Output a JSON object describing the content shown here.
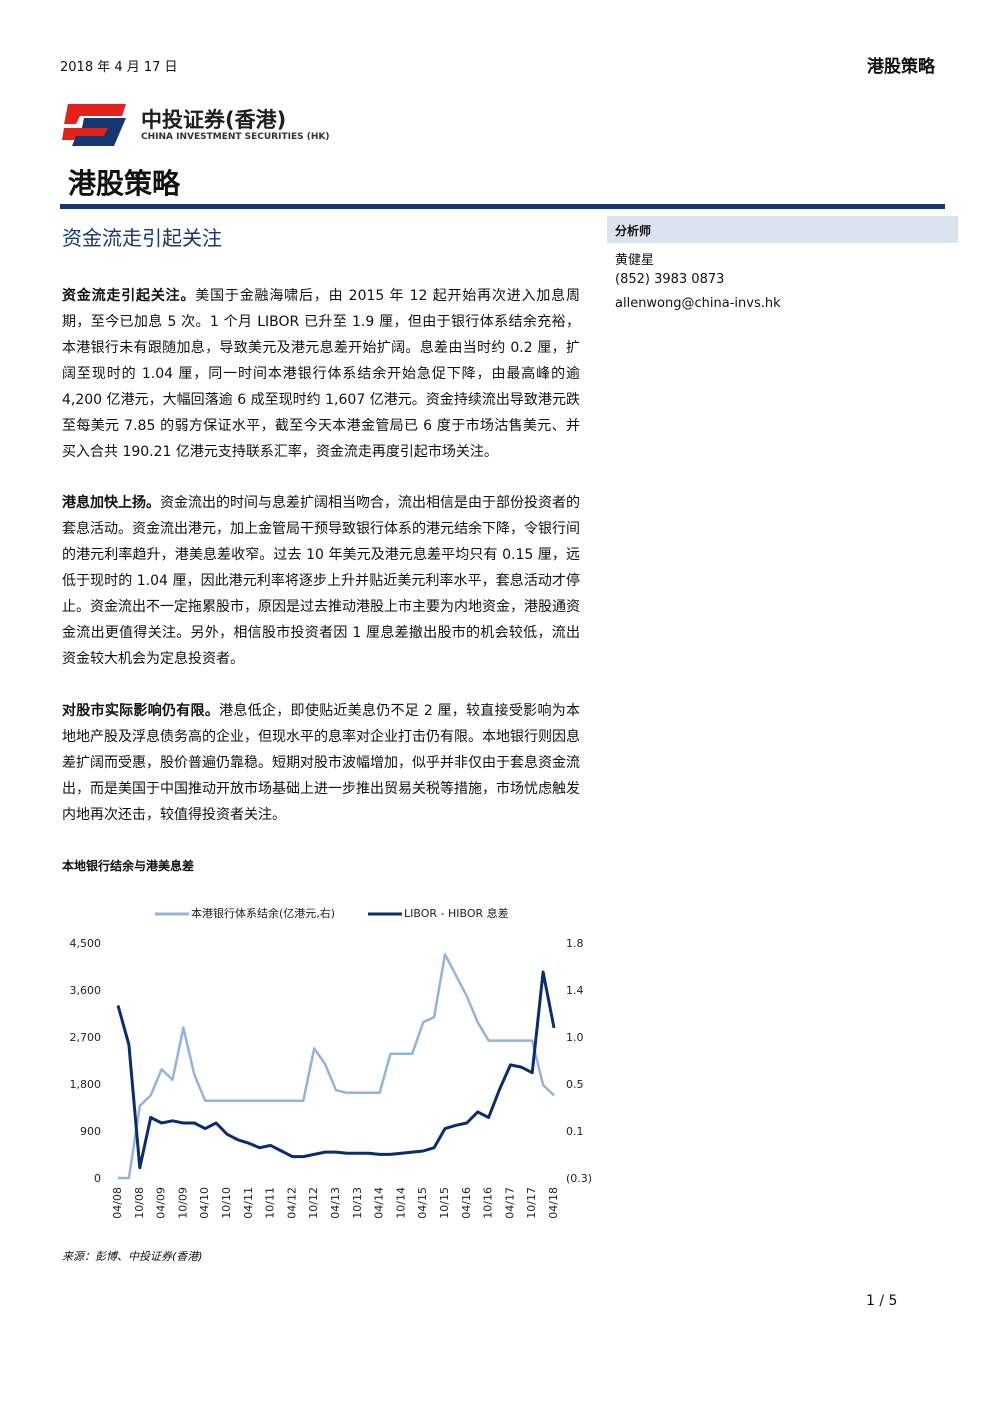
{
  "header": {
    "date": "2018 年 4 月 17 日",
    "report_type": "港股策略"
  },
  "logo": {
    "name_cn": "中投证券(香港)",
    "name_en": "CHINA INVESTMENT SECURITIES (HK)"
  },
  "section_title": "港股策略",
  "article": {
    "title": "资金流走引起关注",
    "paragraphs": [
      {
        "lead": "资金流走引起关注。",
        "text": "美国于金融海啸后，由 2015 年 12 起开始再次进入加息周期，至今已加息 5 次。1 个月 LIBOR 已升至 1.9 厘，但由于银行体系结余充裕，本港银行未有跟随加息，导致美元及港元息差开始扩阔。息差由当时约 0.2 厘，扩阔至现时的 1.04 厘，同一时间本港银行体系结余开始急促下降，由最高峰的逾 4,200 亿港元，大幅回落逾 6 成至现时约 1,607 亿港元。资金持续流出导致港元跌至每美元 7.85 的弱方保证水平，截至今天本港金管局已 6 度于市场沽售美元、并买入合共 190.21 亿港元支持联系汇率，资金流走再度引起市场关注。"
      },
      {
        "lead": "港息加快上扬。",
        "text": "资金流出的时间与息差扩阔相当吻合，流出相信是由于部份投资者的套息活动。资金流出港元，加上金管局干预导致银行体系的港元结余下降，令银行间的港元利率趋升，港美息差收窄。过去 10 年美元及港元息差平均只有 0.15 厘，远低于现时的 1.04 厘，因此港元利率将逐步上升并贴近美元利率水平，套息活动才停止。资金流出不一定拖累股市，原因是过去推动港股上市主要为内地资金，港股通资金流出更值得关注。另外，相信股市投资者因 1 厘息差撤出股市的机会较低，流出资金较大机会为定息投资者。"
      },
      {
        "lead": "对股市实际影响仍有限。",
        "text": "港息低企，即使贴近美息仍不足 2 厘，较直接受影响为本地地产股及浮息债务高的企业，但现水平的息率对企业打击仍有限。本地银行则因息差扩阔而受惠，股价普遍仍靠稳。短期对股市波幅增加，似乎并非仅由于套息资金流出，而是美国于中国推动开放市场基础上进一步推出贸易关税等措施，市场忧虑触发内地再次还击，较值得投资者关注。"
      }
    ]
  },
  "sidebar": {
    "label": "分析师",
    "analyst": "黄健星",
    "phone": "(852) 3983 0873",
    "email": "allenwong@china-invs.hk"
  },
  "chart_data": {
    "type": "line",
    "title": "本地银行结余与港美息差",
    "categories": [
      "04/08",
      null,
      "10/08",
      null,
      "04/09",
      null,
      "10/09",
      null,
      "04/10",
      null,
      "10/10",
      null,
      "04/11",
      null,
      "10/11",
      null,
      "04/12",
      null,
      "10/12",
      null,
      "04/13",
      null,
      "10/13",
      null,
      "04/14",
      null,
      "10/14",
      null,
      "04/15",
      null,
      "10/15",
      null,
      "04/16",
      null,
      "10/16",
      null,
      "04/17",
      null,
      "10/17",
      null,
      "04/18"
    ],
    "series": [
      {
        "name": "本港银行体系结余(亿港元,右)",
        "color": "#95b3d7",
        "values": [
          20,
          20,
          1400,
          1600,
          2100,
          1900,
          2900,
          2000,
          1500,
          1500,
          1500,
          1500,
          1500,
          1500,
          1500,
          1500,
          1500,
          1500,
          2500,
          2200,
          1700,
          1650,
          1650,
          1650,
          1650,
          2400,
          2400,
          2400,
          3000,
          3100,
          4300,
          3900,
          3500,
          3000,
          2650,
          2650,
          2650,
          2650,
          2650,
          1800,
          1600
        ]
      },
      {
        "name": "LIBOR - HIBOR 息差",
        "color": "#0d2c6c",
        "axis": "y2",
        "values": [
          1.25,
          0.9,
          -0.2,
          0.25,
          0.2,
          0.22,
          0.2,
          0.2,
          0.15,
          0.2,
          0.1,
          0.05,
          0.02,
          -0.02,
          0.0,
          -0.05,
          -0.1,
          -0.1,
          -0.08,
          -0.06,
          -0.06,
          -0.07,
          -0.07,
          -0.07,
          -0.08,
          -0.08,
          -0.07,
          -0.06,
          -0.05,
          -0.02,
          0.15,
          0.18,
          0.2,
          0.3,
          0.25,
          0.5,
          0.72,
          0.7,
          0.65,
          1.55,
          1.05
        ]
      }
    ],
    "ylim": [
      0,
      4500
    ],
    "yticks": [
      0,
      900,
      {
        "value": 1800,
        "label": "1,800"
      },
      {
        "value": 2700,
        "label": "2,700"
      },
      {
        "value": 3600,
        "label": "3,600"
      },
      {
        "value": 4500,
        "label": "4,500"
      }
    ],
    "y2lim": [
      -0.3,
      1.8
    ],
    "y2ticks": [
      {
        "value": -0.3,
        "label": "(0.3)"
      },
      {
        "value": 0.12,
        "label": "0.1"
      },
      {
        "value": 0.54,
        "label": "0.5"
      },
      {
        "value": 0.96,
        "label": "1.0"
      },
      {
        "value": 1.38,
        "label": "1.4"
      },
      1.8
    ],
    "negative_color": "#c00000"
  },
  "source": "来源：彭博、中投证券(香港)",
  "page_number": "1 / 5"
}
